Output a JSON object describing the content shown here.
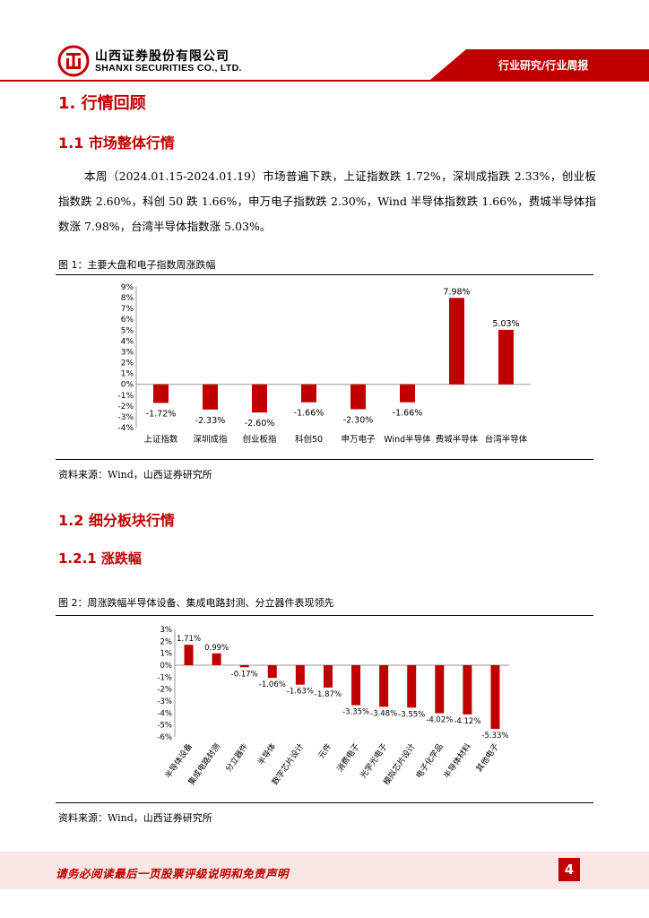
{
  "header": {
    "company_cn": "山西证券股份有限公司",
    "company_en": "SHANXI SECURITIES CO., LTD.",
    "category": "行业研究/行业周报",
    "accent": "#c00000"
  },
  "section1": {
    "title": "1.  行情回顾",
    "sub1_title": "1.1  市场整体行情",
    "paragraph": "本周（2024.01.15-2024.01.19）市场普遍下跌，上证指数跌 1.72%，深圳成指跌 2.33%，创业板指数跌 2.60%，科创 50 跌 1.66%，申万电子指数跌 2.30%，Wind 半导体指数跌 1.66%，费城半导体指数涨 7.98%，台湾半导体指数涨 5.03%。",
    "sub2_title": "1.2  细分板块行情",
    "sub21_title": "1.2.1  涨跌幅"
  },
  "figure1": {
    "caption": "图 1：主要大盘和电子指数周涨跌幅",
    "source": "资料来源：Wind，山西证券研究所"
  },
  "figure2": {
    "caption": "图 2：周涨跌幅半导体设备、集成电路封测、分立器件表现领先",
    "source": "资料来源：Wind，山西证券研究所"
  },
  "chart_data": [
    {
      "type": "bar",
      "categories": [
        "上证指数",
        "深圳成指",
        "创业板指",
        "科创50",
        "申万电子",
        "Wind半导体",
        "费城半导体",
        "台湾半导体"
      ],
      "values": [
        -1.72,
        -2.33,
        -2.6,
        -1.66,
        -2.3,
        -1.66,
        7.98,
        5.03
      ],
      "data_labels": [
        "-1.72%",
        "-2.33%",
        "-2.60%",
        "-1.66%",
        "-2.30%",
        "-1.66%",
        "7.98%",
        "5.03%"
      ],
      "y_ticks": [
        "9%",
        "8%",
        "7%",
        "6%",
        "5%",
        "4%",
        "3%",
        "2%",
        "1%",
        "0%",
        "-1%",
        "-2%",
        "-3%",
        "-4%"
      ],
      "ylim": [
        -4,
        9
      ],
      "bar_color": "#c00000",
      "grid": false
    },
    {
      "type": "bar",
      "categories": [
        "半导体设备",
        "集成电路封测",
        "分立器件",
        "半导体",
        "数字芯片设计",
        "元件",
        "消费电子",
        "光学光电子",
        "模拟芯片设计",
        "电子化学品",
        "半导体材料",
        "其他电子"
      ],
      "values": [
        1.71,
        0.99,
        -0.17,
        -1.06,
        -1.63,
        -1.87,
        -3.35,
        -3.48,
        -3.55,
        -4.02,
        -4.12,
        -5.33
      ],
      "data_labels": [
        "1.71%",
        "0.99%",
        "-0.17%",
        "-1.06%",
        "-1.63%",
        "-1.87%",
        "-3.35%",
        "-3.48%",
        "-3.55%",
        "-4.02%",
        "-4.12%",
        "-5.33%"
      ],
      "y_ticks": [
        "3%",
        "2%",
        "1%",
        "0%",
        "-1%",
        "-2%",
        "-3%",
        "-4%",
        "-5%",
        "-6%"
      ],
      "ylim": [
        -6,
        3
      ],
      "bar_color": "#c00000",
      "grid": false
    }
  ],
  "footer": {
    "disclaimer": "请务必阅读最后一页股票评级说明和免责声明",
    "page_number": "4"
  }
}
